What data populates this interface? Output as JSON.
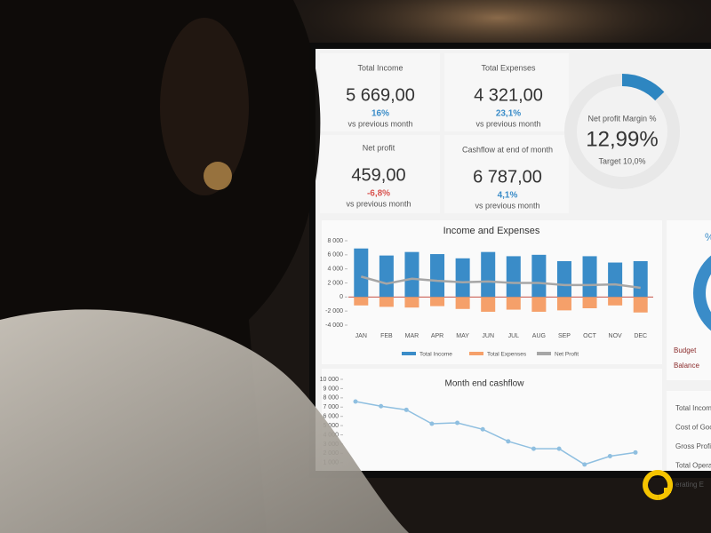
{
  "kpis": [
    {
      "label": "Total Income",
      "value": "5 669,00",
      "change": "16%",
      "note": "vs previous month"
    },
    {
      "label": "Total Expenses",
      "value": "4 321,00",
      "change": "23,1%",
      "note": "vs previous month"
    },
    {
      "label": "Net profit",
      "value": "459,00",
      "change": "-6,8%",
      "note": "vs previous month"
    },
    {
      "label": "Cashflow at end of month",
      "value": "6 787,00",
      "change": "4,1%",
      "note": "vs previous month"
    }
  ],
  "chart_data": [
    {
      "type": "donut",
      "title": "Net profit Margin %",
      "subtitle": "Target 10,0%",
      "values": [
        12.99
      ],
      "value_labels": [
        "12,99%"
      ],
      "color": "#2e86c1"
    },
    {
      "type": "bar",
      "title": "Income and Expenses",
      "categories": [
        "JAN",
        "FEB",
        "MAR",
        "APR",
        "MAY",
        "JUN",
        "JUL",
        "AUG",
        "SEP",
        "OCT",
        "NOV",
        "DEC"
      ],
      "series": [
        {
          "name": "Total Income",
          "color": "#3a8cc8",
          "values": [
            6900,
            5900,
            6400,
            6100,
            5500,
            6400,
            5800,
            6000,
            5100,
            5800,
            4900,
            5100
          ]
        },
        {
          "name": "Total Expenses",
          "color": "#f5a06a",
          "values": [
            -1200,
            -1400,
            -1500,
            -1300,
            -1700,
            -2100,
            -1800,
            -2100,
            -1900,
            -1600,
            -1200,
            -2200
          ]
        },
        {
          "name": "Net Profit",
          "color": "#a6a6a6",
          "type": "line",
          "values": [
            2900,
            1900,
            2600,
            2300,
            2100,
            2200,
            2000,
            2000,
            1700,
            1700,
            1800,
            1300
          ]
        }
      ],
      "ylim": [
        -4000,
        8000
      ],
      "yticks": [
        {
          "value": 8000,
          "label": "8 000"
        },
        {
          "value": 6000,
          "label": "6 000"
        },
        {
          "value": 4000,
          "label": "4 000"
        },
        {
          "value": 2000,
          "label": "2 000"
        },
        0,
        {
          "value": -2000,
          "label": "-2 000"
        },
        {
          "value": -4000,
          "label": "-4 000"
        }
      ]
    },
    {
      "type": "line",
      "title": "Month end cashflow",
      "categories": [
        "JAN",
        "FEB",
        "MAR",
        "APR",
        "MAY",
        "JUN",
        "JUL",
        "AUG",
        "SEP",
        "OCT",
        "NOV",
        "DEC"
      ],
      "values": [
        7600,
        7100,
        6700,
        5200,
        5300,
        4600,
        3300,
        2500,
        2500,
        800,
        1700,
        2100
      ],
      "color": "#8fbfe0",
      "ylim": [
        500,
        10000
      ],
      "yticks": [
        {
          "value": 10000,
          "label": "10 000"
        },
        {
          "value": 9000,
          "label": "9 000"
        },
        {
          "value": 8000,
          "label": "8 000"
        },
        {
          "value": 7000,
          "label": "7 000"
        },
        {
          "value": 6000,
          "label": "6 000"
        },
        {
          "value": 5000,
          "label": "5 000"
        },
        {
          "value": 4000,
          "label": "4 000"
        },
        {
          "value": 3000,
          "label": "3 000"
        },
        {
          "value": 2000,
          "label": "2 000"
        },
        {
          "value": 1000,
          "label": "1 000"
        }
      ]
    }
  ],
  "side": {
    "percent": "%",
    "budget": "Budget",
    "balance": "Balance",
    "rows": [
      "Total Incom",
      "Cost of Goo",
      "Gross Profi",
      "Total Opera",
      "erating E"
    ]
  }
}
